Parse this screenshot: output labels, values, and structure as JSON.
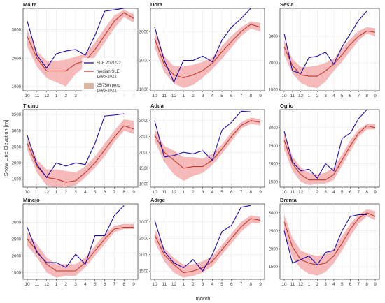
{
  "figure": {
    "ylabel": "Snow Line Elevation [m]",
    "xlabel": "month"
  },
  "legend": {
    "entries": [
      {
        "label_lines": [
          "SLE 2021/22"
        ],
        "type": "line",
        "color": "#1a0dab"
      },
      {
        "label_lines": [
          "median SLE",
          "1985-2021"
        ],
        "type": "line",
        "color": "#c0392b"
      },
      {
        "label_lines": [
          "25/75th perc",
          "1985-2021"
        ],
        "type": "band",
        "color": "#d9b8a3"
      }
    ]
  },
  "colors": {
    "sle": "#1a0dab",
    "median": "#c0392b",
    "band": "#f4a3a3",
    "grid": "#e6e6e6",
    "frame": "#333333"
  },
  "chart_data": [
    {
      "title": "Maira",
      "type": "line",
      "x": [
        "10",
        "11",
        "12",
        "1",
        "2",
        "3",
        "4",
        "5",
        "6",
        "7",
        "8",
        "9"
      ],
      "yticks": [
        1000,
        2000,
        3000
      ],
      "ylim": [
        850,
        3750
      ],
      "series": [
        {
          "name": "SLE 2021/22",
          "values": [
            3300,
            2100,
            1650,
            2150,
            2250,
            2300,
            2100,
            2800,
            3650,
            3700,
            3750,
            null
          ]
        },
        {
          "name": "median SLE 1985-2021",
          "values": [
            2750,
            2000,
            1550,
            1550,
            1550,
            1800,
            1900,
            2300,
            2800,
            3300,
            3600,
            3400
          ]
        },
        {
          "name": "25/75th perc 1985-2021",
          "lower": [
            2400,
            1700,
            1300,
            1150,
            1000,
            1450,
            1700,
            2050,
            2550,
            3050,
            3450,
            3250
          ],
          "upper": [
            3000,
            2250,
            1900,
            1900,
            1950,
            2050,
            2150,
            2550,
            3050,
            3500,
            3700,
            3550
          ]
        }
      ]
    },
    {
      "title": "Dora",
      "type": "line",
      "x": [
        "10",
        "11",
        "12",
        "1",
        "2",
        "3",
        "4",
        "5",
        "6",
        "7",
        "8",
        "9"
      ],
      "yticks": [
        1000,
        2000,
        3000
      ],
      "ylim": [
        950,
        3800
      ],
      "series": [
        {
          "name": "SLE 2021/22",
          "values": [
            3150,
            2000,
            1250,
            2000,
            2000,
            2150,
            1950,
            2700,
            3150,
            3450,
            3800,
            null
          ]
        },
        {
          "name": "median SLE 1985-2021",
          "values": [
            2750,
            1850,
            1500,
            1400,
            1500,
            1650,
            1900,
            2300,
            2650,
            3000,
            3250,
            3150
          ]
        },
        {
          "name": "25/75th perc 1985-2021",
          "lower": [
            2450,
            1600,
            1200,
            1050,
            1150,
            1400,
            1700,
            2050,
            2450,
            2850,
            3100,
            3000
          ],
          "upper": [
            3000,
            2150,
            1800,
            1800,
            1850,
            1950,
            2100,
            2500,
            2850,
            3150,
            3350,
            3300
          ]
        }
      ]
    },
    {
      "title": "Sesia",
      "type": "line",
      "x": [
        "10",
        "11",
        "12",
        "1",
        "2",
        "3",
        "4",
        "5",
        "6",
        "7",
        "8",
        "9"
      ],
      "yticks": [
        1000,
        2000,
        3000
      ],
      "ylim": [
        950,
        4050
      ],
      "series": [
        {
          "name": "SLE 2021/22",
          "values": [
            3100,
            1700,
            1600,
            2200,
            2250,
            2400,
            1950,
            2600,
            3100,
            3600,
            3950,
            null
          ]
        },
        {
          "name": "median SLE 1985-2021",
          "values": [
            2600,
            1900,
            1550,
            1500,
            1500,
            1700,
            1950,
            2300,
            2700,
            3000,
            3200,
            3150
          ]
        },
        {
          "name": "25/75th perc 1985-2021",
          "lower": [
            2300,
            1600,
            1250,
            1100,
            1050,
            1300,
            1700,
            2050,
            2450,
            2850,
            3100,
            3000
          ],
          "upper": [
            2850,
            2150,
            1850,
            1850,
            1900,
            2000,
            2150,
            2550,
            2900,
            3200,
            3350,
            3300
          ]
        }
      ]
    },
    {
      "title": "Ticino",
      "type": "line",
      "x": [
        "10",
        "11",
        "12",
        "1",
        "2",
        "3",
        "4",
        "5",
        "6",
        "7",
        "8",
        "9"
      ],
      "yticks": [
        1500,
        2000,
        2500,
        3000,
        3500
      ],
      "ylim": [
        1250,
        3650
      ],
      "series": [
        {
          "name": "SLE 2021/22",
          "values": [
            2850,
            1950,
            1550,
            2000,
            1900,
            2000,
            1950,
            2600,
            3450,
            3480,
            3520,
            null
          ]
        },
        {
          "name": "median SLE 1985-2021",
          "values": [
            2600,
            1900,
            1550,
            1500,
            1400,
            1450,
            1700,
            2000,
            2400,
            2800,
            3150,
            3050
          ]
        },
        {
          "name": "25/75th perc 1985-2021",
          "lower": [
            2400,
            1700,
            1300,
            1250,
            1250,
            1300,
            1550,
            1850,
            2200,
            2650,
            3000,
            2900
          ],
          "upper": [
            2800,
            2100,
            1800,
            1800,
            1750,
            1700,
            1900,
            2200,
            2600,
            3000,
            3350,
            3300
          ]
        }
      ]
    },
    {
      "title": "Adda",
      "type": "line",
      "x": [
        "10",
        "11",
        "12",
        "1",
        "2",
        "3",
        "4",
        "5",
        "6",
        "7",
        "8",
        "9"
      ],
      "yticks": [
        1000,
        1500,
        2000,
        2500,
        3000
      ],
      "ylim": [
        900,
        3350
      ],
      "series": [
        {
          "name": "SLE 2021/22",
          "values": [
            3000,
            1850,
            1900,
            2000,
            1950,
            2050,
            1750,
            2700,
            2950,
            3300,
            3280,
            null
          ]
        },
        {
          "name": "median SLE 1985-2021",
          "values": [
            2550,
            2000,
            1750,
            1500,
            1550,
            1550,
            1750,
            2100,
            2500,
            2850,
            3000,
            2950
          ]
        },
        {
          "name": "25/75th perc 1985-2021",
          "lower": [
            2350,
            1700,
            1300,
            1100,
            1250,
            1350,
            1600,
            1950,
            2350,
            2750,
            2900,
            2850
          ],
          "upper": [
            2750,
            2200,
            2050,
            1850,
            1850,
            1800,
            1950,
            2250,
            2650,
            2950,
            3100,
            3050
          ]
        }
      ]
    },
    {
      "title": "Oglio",
      "type": "line",
      "x": [
        "10",
        "11",
        "12",
        "1",
        "2",
        "3",
        "4",
        "5",
        "6",
        "7",
        "8",
        "9"
      ],
      "yticks": [
        1500,
        2000,
        2500,
        3000
      ],
      "ylim": [
        1350,
        3500
      ],
      "series": [
        {
          "name": "SLE 2021/22",
          "values": [
            2900,
            2050,
            1800,
            1850,
            1600,
            2000,
            1800,
            2700,
            2850,
            3250,
            3500,
            null
          ]
        },
        {
          "name": "median SLE 1985-2021",
          "values": [
            2650,
            2000,
            1700,
            1550,
            1550,
            1550,
            1700,
            2100,
            2500,
            2850,
            3050,
            3000
          ]
        },
        {
          "name": "25/75th perc 1985-2021",
          "lower": [
            2400,
            1800,
            1500,
            1400,
            1450,
            1450,
            1550,
            1950,
            2350,
            2750,
            2950,
            2950
          ],
          "upper": [
            2850,
            2200,
            1900,
            1750,
            1700,
            1750,
            1900,
            2250,
            2650,
            2950,
            3100,
            3100
          ]
        }
      ]
    },
    {
      "title": "Mincio",
      "type": "line",
      "x": [
        "10",
        "11",
        "12",
        "1",
        "2",
        "3",
        "4",
        "5",
        "6",
        "7",
        "8",
        "9"
      ],
      "yticks": [
        1500,
        2000,
        2500,
        3000
      ],
      "ylim": [
        1300,
        3550
      ],
      "series": [
        {
          "name": "SLE 2021/22",
          "values": [
            2850,
            2100,
            1800,
            1800,
            1650,
            2050,
            1750,
            2600,
            2600,
            3200,
            3500,
            null
          ]
        },
        {
          "name": "median SLE 1985-2021",
          "values": [
            2500,
            2150,
            1750,
            1550,
            1550,
            1550,
            1800,
            2150,
            2500,
            2800,
            2850,
            2850
          ]
        },
        {
          "name": "25/75th perc 1985-2021",
          "lower": [
            2300,
            1950,
            1500,
            1350,
            1400,
            1400,
            1650,
            2000,
            2350,
            2700,
            2800,
            2800
          ],
          "upper": [
            2700,
            2350,
            1950,
            1750,
            1750,
            1750,
            1950,
            2300,
            2650,
            2900,
            2950,
            2950
          ]
        }
      ]
    },
    {
      "title": "Adige",
      "type": "line",
      "x": [
        "10",
        "11",
        "12",
        "1",
        "2",
        "3",
        "4",
        "5",
        "6",
        "7",
        "8",
        "9"
      ],
      "yticks": [
        1500,
        2000,
        2500,
        3000
      ],
      "ylim": [
        1250,
        3550
      ],
      "series": [
        {
          "name": "SLE 2021/22",
          "values": [
            3050,
            2100,
            1750,
            1600,
            1850,
            1500,
            2000,
            2700,
            2900,
            3450,
            3500,
            null
          ]
        },
        {
          "name": "median SLE 1985-2021",
          "values": [
            2600,
            2000,
            1700,
            1450,
            1500,
            1600,
            1800,
            2150,
            2500,
            2850,
            3100,
            3050
          ]
        },
        {
          "name": "25/75th perc 1985-2021",
          "lower": [
            2400,
            1800,
            1450,
            1300,
            1350,
            1450,
            1650,
            2000,
            2350,
            2700,
            2950,
            2950
          ],
          "upper": [
            2800,
            2200,
            1900,
            1700,
            1700,
            1800,
            1950,
            2300,
            2650,
            3000,
            3200,
            3150
          ]
        }
      ]
    },
    {
      "title": "Brenta",
      "type": "line",
      "x": [
        "10",
        "11",
        "12",
        "1",
        "2",
        "3",
        "4",
        "5",
        "6",
        "7",
        "8",
        "9"
      ],
      "yticks": [
        1500,
        2000,
        2500,
        3000
      ],
      "ylim": [
        1150,
        3250
      ],
      "series": [
        {
          "name": "SLE 2021/22",
          "values": [
            2500,
            1600,
            1700,
            1800,
            1550,
            1900,
            1950,
            2500,
            2900,
            2950,
            2950,
            null
          ]
        },
        {
          "name": "median SLE 1985-2021",
          "values": [
            2750,
            2050,
            1700,
            1600,
            1550,
            1600,
            1800,
            2150,
            2550,
            2850,
            3000,
            2900
          ]
        },
        {
          "name": "25/75th perc 1985-2021",
          "lower": [
            2450,
            1750,
            1450,
            1300,
            1250,
            1350,
            1600,
            1950,
            2350,
            2700,
            2900,
            2800
          ],
          "upper": [
            2950,
            2300,
            1950,
            1850,
            1800,
            1850,
            2000,
            2350,
            2700,
            2950,
            3100,
            3050
          ]
        }
      ]
    }
  ]
}
